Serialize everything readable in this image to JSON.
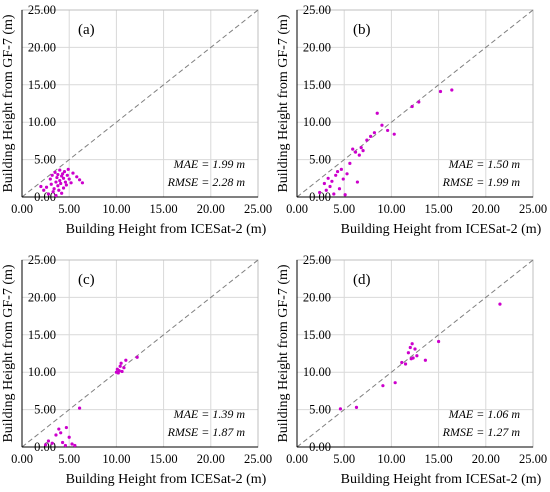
{
  "figure": {
    "point_color": "#cc00cc",
    "grid_color": "#d9d9d9",
    "diagonal_color": "#808080"
  },
  "chart_data": [
    {
      "type": "scatter",
      "panel_label": "(a)",
      "xlabel": "Building Height from ICESat-2 (m)",
      "ylabel": "Building Height from GF-7 (m)",
      "xlim": [
        0,
        25
      ],
      "ylim": [
        0,
        25
      ],
      "xticks": [
        "0.00",
        "5.00",
        "10.00",
        "15.00",
        "20.00",
        "25.00"
      ],
      "yticks": [
        "0.00",
        "5.00",
        "10.00",
        "15.00",
        "20.00",
        "25.00"
      ],
      "grid": true,
      "reference_line": "y = x",
      "stats": [
        "MAE = 1.99 m",
        "RMSE = 2.28 m"
      ],
      "points": [
        [
          2.0,
          1.4
        ],
        [
          2.3,
          0.9
        ],
        [
          2.6,
          1.3
        ],
        [
          2.8,
          0.4
        ],
        [
          3.0,
          2.4
        ],
        [
          3.1,
          1.7
        ],
        [
          3.2,
          2.9
        ],
        [
          3.3,
          0.7
        ],
        [
          3.4,
          1.1
        ],
        [
          3.5,
          3.3
        ],
        [
          3.6,
          0.2
        ],
        [
          3.6,
          2.0
        ],
        [
          3.7,
          2.6
        ],
        [
          3.8,
          1.5
        ],
        [
          3.8,
          3.0
        ],
        [
          3.9,
          0.9
        ],
        [
          4.0,
          2.2
        ],
        [
          4.0,
          3.6
        ],
        [
          4.1,
          1.8
        ],
        [
          4.2,
          2.8
        ],
        [
          4.2,
          0.5
        ],
        [
          4.3,
          3.1
        ],
        [
          4.4,
          1.2
        ],
        [
          4.4,
          2.5
        ],
        [
          4.5,
          3.4
        ],
        [
          4.6,
          2.0
        ],
        [
          4.7,
          1.6
        ],
        [
          4.8,
          2.9
        ],
        [
          4.9,
          3.7
        ],
        [
          5.0,
          2.4
        ],
        [
          5.2,
          1.9
        ],
        [
          5.4,
          3.2
        ],
        [
          5.8,
          2.7
        ],
        [
          6.1,
          2.3
        ],
        [
          6.4,
          1.9
        ]
      ]
    },
    {
      "type": "scatter",
      "panel_label": "(b)",
      "xlabel": "Building Height from ICESat-2 (m)",
      "ylabel": "Building Height from GF-7 (m)",
      "xlim": [
        0,
        25
      ],
      "ylim": [
        0,
        25
      ],
      "xticks": [
        "0.00",
        "5.00",
        "10.00",
        "15.00",
        "20.00",
        "25.00"
      ],
      "yticks": [
        "0.00",
        "5.00",
        "10.00",
        "15.00",
        "20.00",
        "25.00"
      ],
      "grid": true,
      "reference_line": "y = x",
      "stats": [
        "MAE = 1.50 m",
        "RMSE = 1.99 m"
      ],
      "points": [
        [
          2.4,
          0.6
        ],
        [
          2.9,
          1.8
        ],
        [
          3.1,
          0.9
        ],
        [
          3.3,
          2.5
        ],
        [
          3.5,
          1.4
        ],
        [
          3.7,
          2.1
        ],
        [
          3.9,
          0.4
        ],
        [
          4.1,
          2.9
        ],
        [
          4.3,
          3.4
        ],
        [
          4.5,
          1.1
        ],
        [
          4.7,
          3.7
        ],
        [
          4.9,
          2.4
        ],
        [
          5.1,
          0.3
        ],
        [
          5.3,
          3.1
        ],
        [
          5.6,
          4.5
        ],
        [
          5.9,
          6.4
        ],
        [
          6.2,
          6.0
        ],
        [
          6.4,
          2.0
        ],
        [
          6.6,
          5.6
        ],
        [
          6.8,
          6.6
        ],
        [
          7.0,
          6.2
        ],
        [
          7.4,
          7.6
        ],
        [
          7.8,
          8.1
        ],
        [
          8.2,
          8.6
        ],
        [
          8.5,
          11.2
        ],
        [
          9.0,
          9.6
        ],
        [
          9.6,
          8.9
        ],
        [
          10.3,
          8.4
        ],
        [
          12.2,
          12.1
        ],
        [
          12.9,
          12.7
        ],
        [
          15.2,
          14.1
        ],
        [
          16.4,
          14.3
        ]
      ]
    },
    {
      "type": "scatter",
      "panel_label": "(c)",
      "xlabel": "Building Height from ICESat-2 (m)",
      "ylabel": "Building Height from GF-7 (m)",
      "xlim": [
        0,
        25
      ],
      "ylim": [
        0,
        25
      ],
      "xticks": [
        "0.00",
        "5.00",
        "10.00",
        "15.00",
        "20.00",
        "25.00"
      ],
      "yticks": [
        "0.00",
        "5.00",
        "10.00",
        "15.00",
        "20.00",
        "25.00"
      ],
      "grid": true,
      "reference_line": "y = x",
      "stats": [
        "MAE = 1.39 m",
        "RMSE = 1.87 m"
      ],
      "points": [
        [
          2.5,
          0.3
        ],
        [
          2.8,
          0.8
        ],
        [
          3.2,
          0.5
        ],
        [
          3.6,
          1.6
        ],
        [
          3.9,
          2.4
        ],
        [
          4.1,
          1.9
        ],
        [
          4.3,
          0.6
        ],
        [
          4.6,
          0.2
        ],
        [
          4.7,
          2.6
        ],
        [
          5.0,
          1.3
        ],
        [
          5.3,
          0.4
        ],
        [
          5.6,
          0.2
        ],
        [
          6.1,
          5.2
        ],
        [
          10.0,
          10.0
        ],
        [
          10.1,
          10.4
        ],
        [
          10.2,
          9.9
        ],
        [
          10.3,
          10.2
        ],
        [
          10.4,
          10.8
        ],
        [
          10.5,
          11.2
        ],
        [
          10.6,
          10.1
        ],
        [
          10.8,
          10.6
        ],
        [
          11.0,
          11.6
        ],
        [
          12.2,
          12.0
        ]
      ]
    },
    {
      "type": "scatter",
      "panel_label": "(d)",
      "xlabel": "Building Height from ICESat-2 (m)",
      "ylabel": "Building Height from GF-7 (m)",
      "xlim": [
        0,
        25
      ],
      "ylim": [
        0,
        25
      ],
      "xticks": [
        "0.00",
        "5.00",
        "10.00",
        "15.00",
        "20.00",
        "25.00"
      ],
      "yticks": [
        "0.00",
        "5.00",
        "10.00",
        "15.00",
        "20.00",
        "25.00"
      ],
      "grid": true,
      "reference_line": "y = x",
      "stats": [
        "MAE = 1.06 m",
        "RMSE = 1.27 m"
      ],
      "points": [
        [
          4.6,
          5.1
        ],
        [
          6.3,
          5.3
        ],
        [
          9.1,
          8.2
        ],
        [
          10.4,
          8.6
        ],
        [
          11.1,
          11.3
        ],
        [
          11.5,
          11.1
        ],
        [
          11.8,
          12.6
        ],
        [
          12.0,
          13.3
        ],
        [
          12.1,
          11.8
        ],
        [
          12.2,
          13.8
        ],
        [
          12.3,
          11.9
        ],
        [
          12.5,
          13.1
        ],
        [
          12.7,
          12.2
        ],
        [
          13.6,
          11.6
        ],
        [
          15.0,
          14.1
        ],
        [
          21.5,
          19.1
        ]
      ]
    }
  ]
}
